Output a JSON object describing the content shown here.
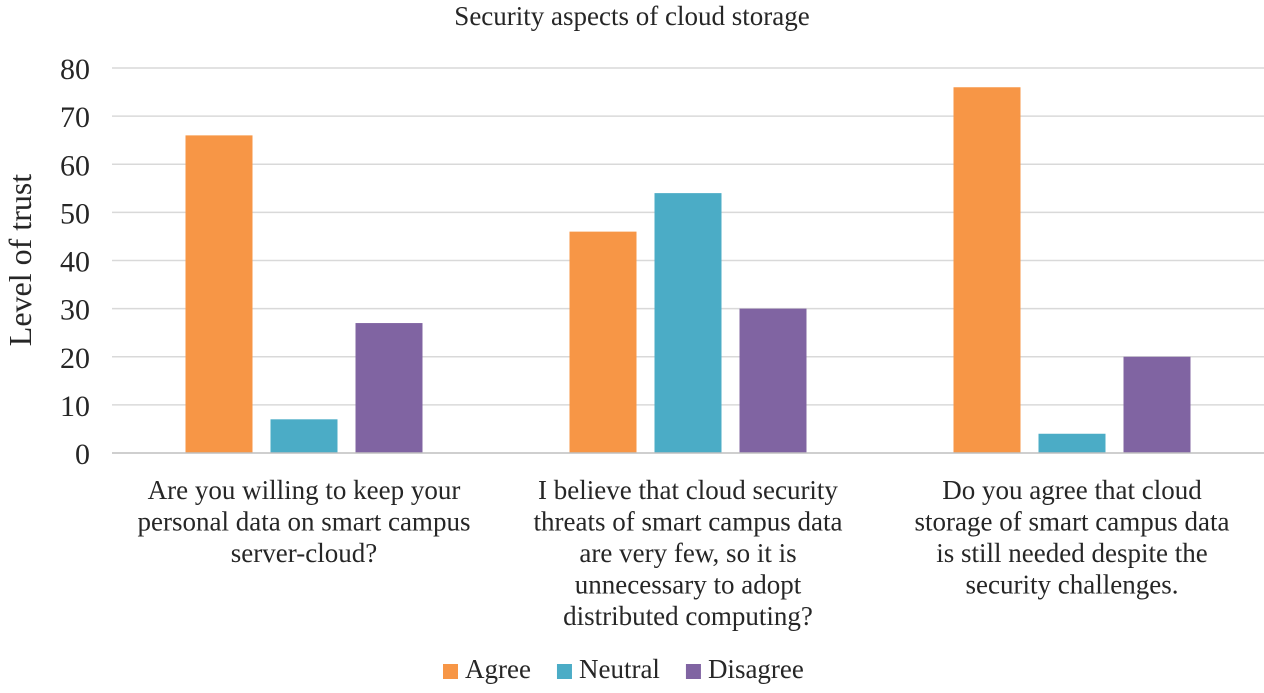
{
  "chart_data": {
    "type": "bar",
    "title": "Security aspects of cloud storage",
    "xlabel": "",
    "ylabel": "Level of trust",
    "ylim": [
      0,
      80
    ],
    "yticks": [
      0,
      10,
      20,
      30,
      40,
      50,
      60,
      70,
      80
    ],
    "grid": true,
    "legend_position": "bottom",
    "categories": [
      [
        "Are you willing to keep your",
        "personal data on smart campus",
        "server-cloud?"
      ],
      [
        "I believe that cloud security",
        "threats of smart campus data",
        "are very few, so it is",
        "unnecessary to adopt",
        "distributed computing?"
      ],
      [
        "Do you agree that cloud",
        "storage of smart campus data",
        "is still needed despite the",
        "security challenges."
      ]
    ],
    "series": [
      {
        "name": "Agree",
        "color": "#F79646",
        "values": [
          66,
          46,
          76
        ]
      },
      {
        "name": "Neutral",
        "color": "#4BACC6",
        "values": [
          7,
          54,
          4
        ]
      },
      {
        "name": "Disagree",
        "color": "#8064A2",
        "values": [
          27,
          30,
          20
        ]
      }
    ]
  }
}
